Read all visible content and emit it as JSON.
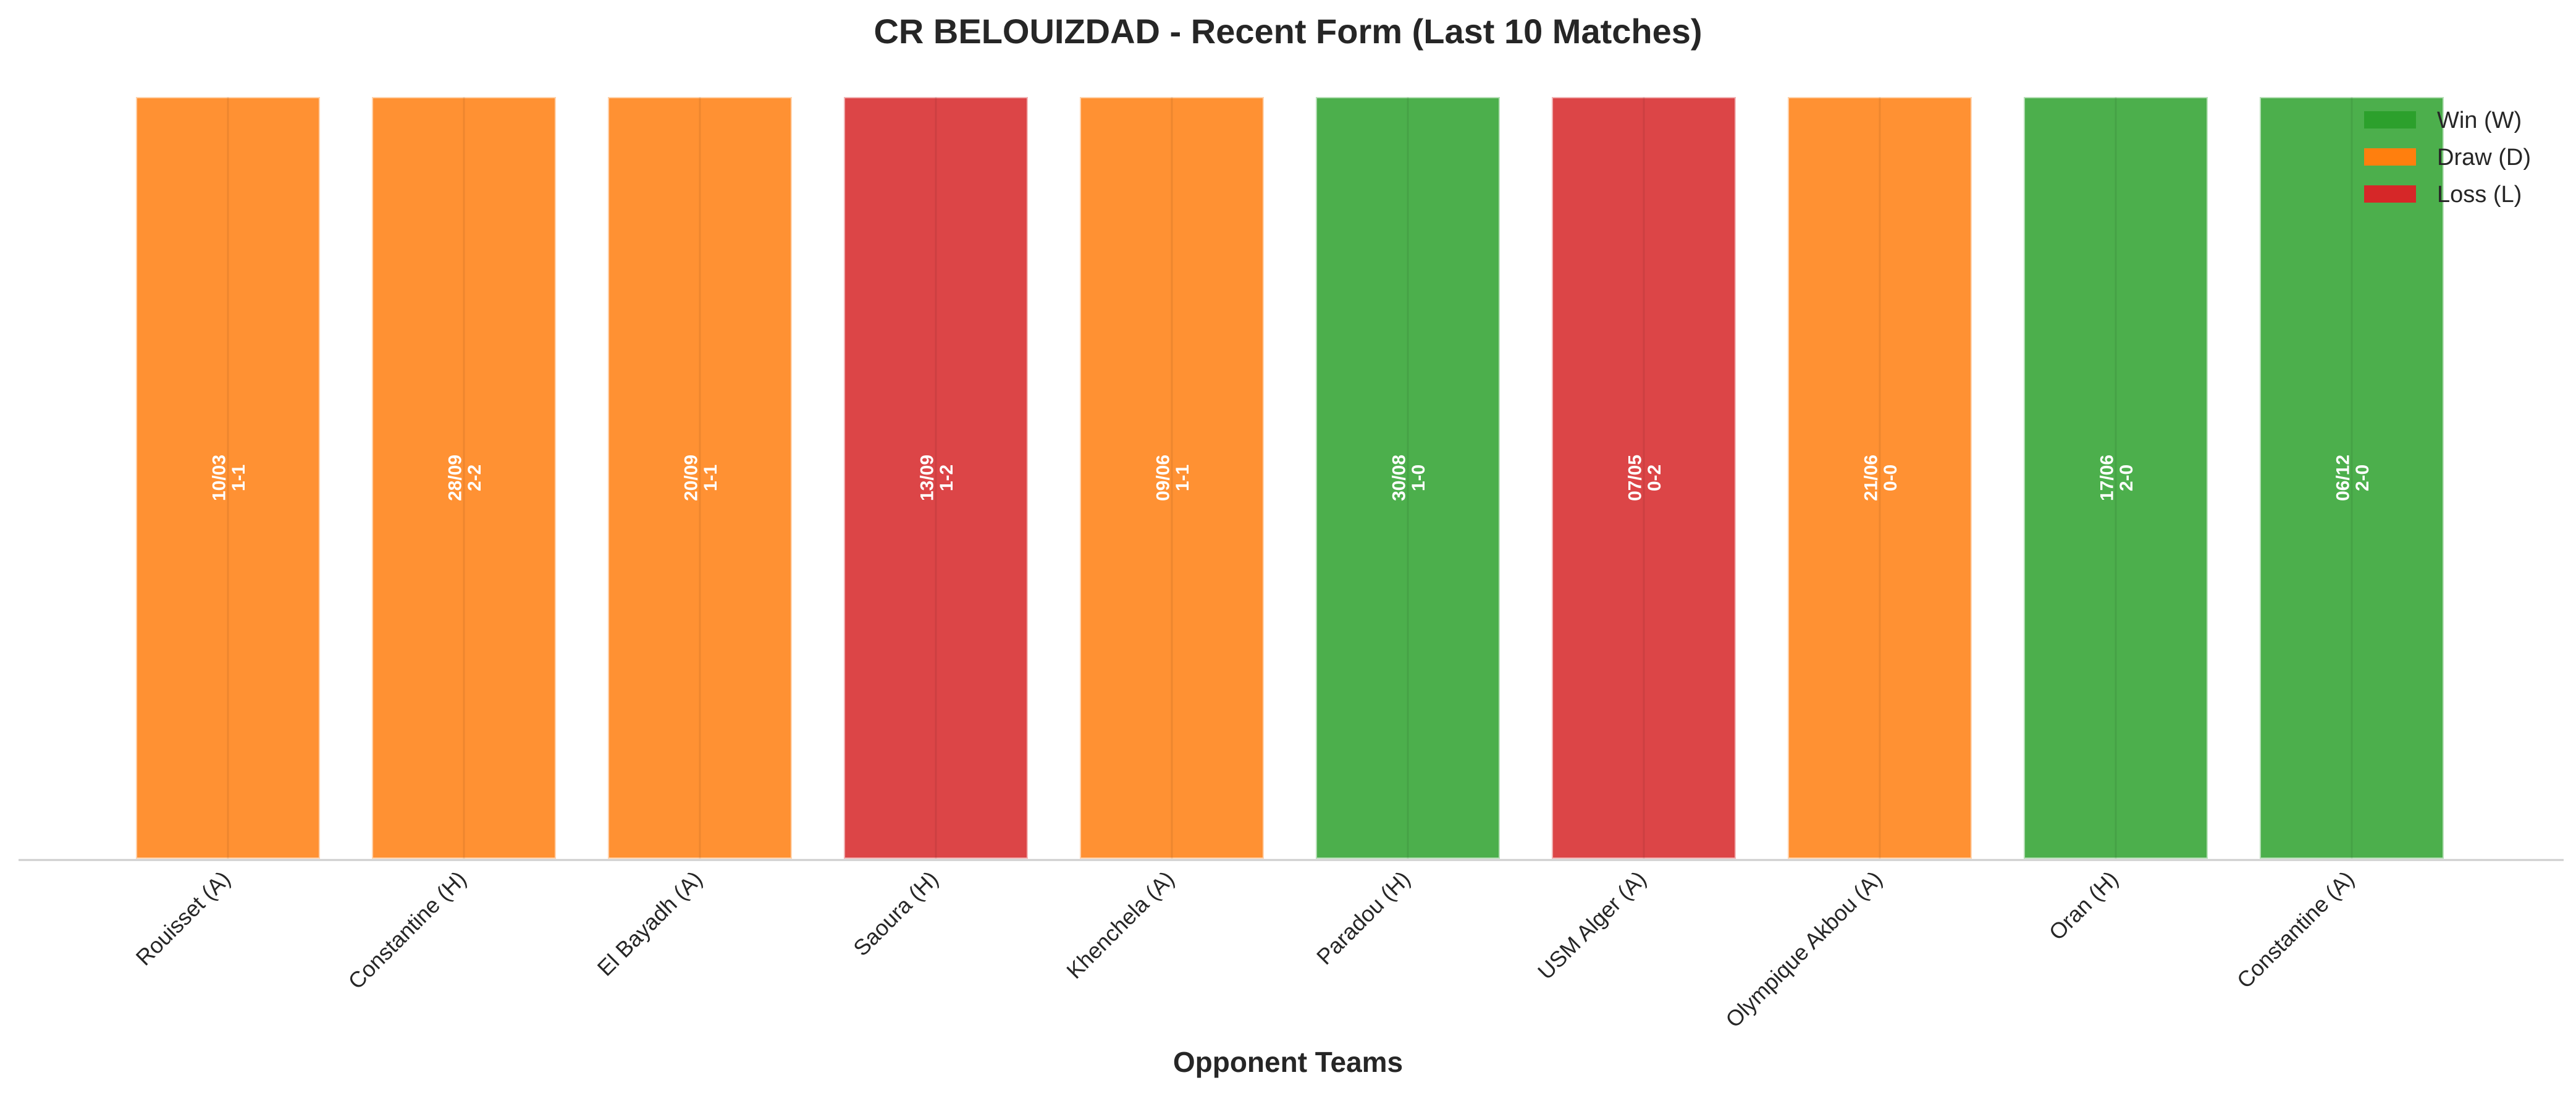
{
  "chart_data": {
    "type": "bar",
    "title": "CR BELOUIZDAD - Recent Form (Last 10 Matches)",
    "xlabel": "Opponent Teams",
    "ylabel": "",
    "ylim": [
      0,
      1
    ],
    "grid": false,
    "legend_position": "top-right",
    "categories": [
      "Rouisset (A)",
      "Constantine (H)",
      "El Bayadh (A)",
      "Saoura (H)",
      "Khenchela (A)",
      "Paradou (H)",
      "USM Alger (A)",
      "Olympique Akbou (A)",
      "Oran (H)",
      "Constantine (A)"
    ],
    "values": [
      1,
      1,
      1,
      1,
      1,
      1,
      1,
      1,
      1,
      1
    ],
    "results": [
      "D",
      "D",
      "D",
      "L",
      "D",
      "W",
      "L",
      "D",
      "W",
      "W"
    ],
    "dates": [
      "10/03",
      "28/09",
      "20/09",
      "13/09",
      "09/06",
      "30/08",
      "07/05",
      "21/06",
      "17/06",
      "06/12"
    ],
    "scores": [
      "1-1",
      "2-2",
      "1-1",
      "1-2",
      "1-1",
      "1-0",
      "0-2",
      "0-0",
      "2-0",
      "2-0"
    ],
    "legend": [
      {
        "key": "W",
        "label": "Win (W)",
        "color": "#2ca02c"
      },
      {
        "key": "D",
        "label": "Draw (D)",
        "color": "#ff7f0e"
      },
      {
        "key": "L",
        "label": "Loss (L)",
        "color": "#d62728"
      }
    ],
    "bar_colors": {
      "W": "#4caf4c",
      "D": "#ff9133",
      "L": "#dc4547"
    }
  }
}
